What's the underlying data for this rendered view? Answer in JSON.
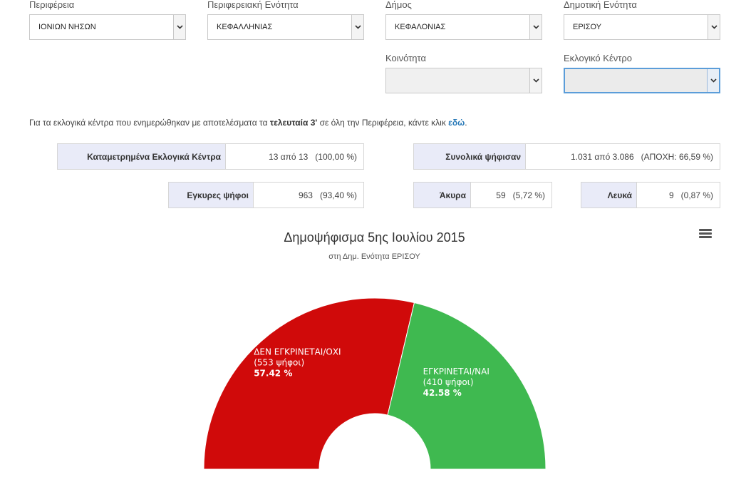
{
  "filters": {
    "periphery": {
      "label": "Περιφέρεια",
      "value": "ΙΟΝΙΩΝ ΝΗΣΩΝ"
    },
    "regional_unit": {
      "label": "Περιφερειακή Ενότητα",
      "value": "ΚΕΦΑΛΛΗΝΙΑΣ"
    },
    "municipality": {
      "label": "Δήμος",
      "value": "ΚΕΦΑΛΟΝΙΑΣ"
    },
    "municipal_unit": {
      "label": "Δημοτική Ενότητα",
      "value": "ΕΡΙΣΟΥ"
    },
    "community": {
      "label": "Κοινότητα",
      "value": ""
    },
    "polling_center": {
      "label": "Εκλογικό Κέντρο",
      "value": ""
    }
  },
  "info": {
    "before": "Για τα εκλογικά κέντρα που ενημερώθηκαν με αποτελέσματα τα ",
    "highlight": "τελευταία 3'",
    "after": " σε όλη την Περιφέρεια, κάντε κλικ ",
    "link": "εδώ",
    "end": "."
  },
  "stats": {
    "counted": {
      "label": "Καταμετρημένα Εκλογικά Κέντρα",
      "value": "13 από 13   (100,00 %)"
    },
    "total_voted": {
      "label": "Συνολικά ψήφισαν",
      "value": "1.031 από 3.086   (ΑΠΟΧΗ: 66,59 %)"
    },
    "valid": {
      "label": "Εγκυρες ψήφοι",
      "value": "963   (93,40 %)"
    },
    "invalid": {
      "label": "Άκυρα",
      "value": "59   (5,72 %)"
    },
    "blank": {
      "label": "Λευκά",
      "value": "9   (0,87 %)"
    }
  },
  "chart_data": {
    "type": "pie",
    "variant": "semicircle-donut",
    "title": "Δημοψήφισμα 5ης Ιουλίου 2015",
    "subtitle": "στη Δημ. Ενότητα ΕΡΙΣΟΥ",
    "slices": [
      {
        "name": "ΔΕΝ ΕΓΚΡΙΝΕΤΑΙ/ΟΧΙ",
        "votes_label": "(553 ψήφοι)",
        "votes": 553,
        "percent": 57.42,
        "percent_label": "57.42 %",
        "color": "#d00a0a"
      },
      {
        "name": "ΕΓΚΡΙΝΕΤΑΙ/ΝΑΙ",
        "votes_label": "(410 ψήφοι)",
        "votes": 410,
        "percent": 42.58,
        "percent_label": "42.58 %",
        "color": "#3fb950"
      }
    ],
    "legend": "none"
  }
}
